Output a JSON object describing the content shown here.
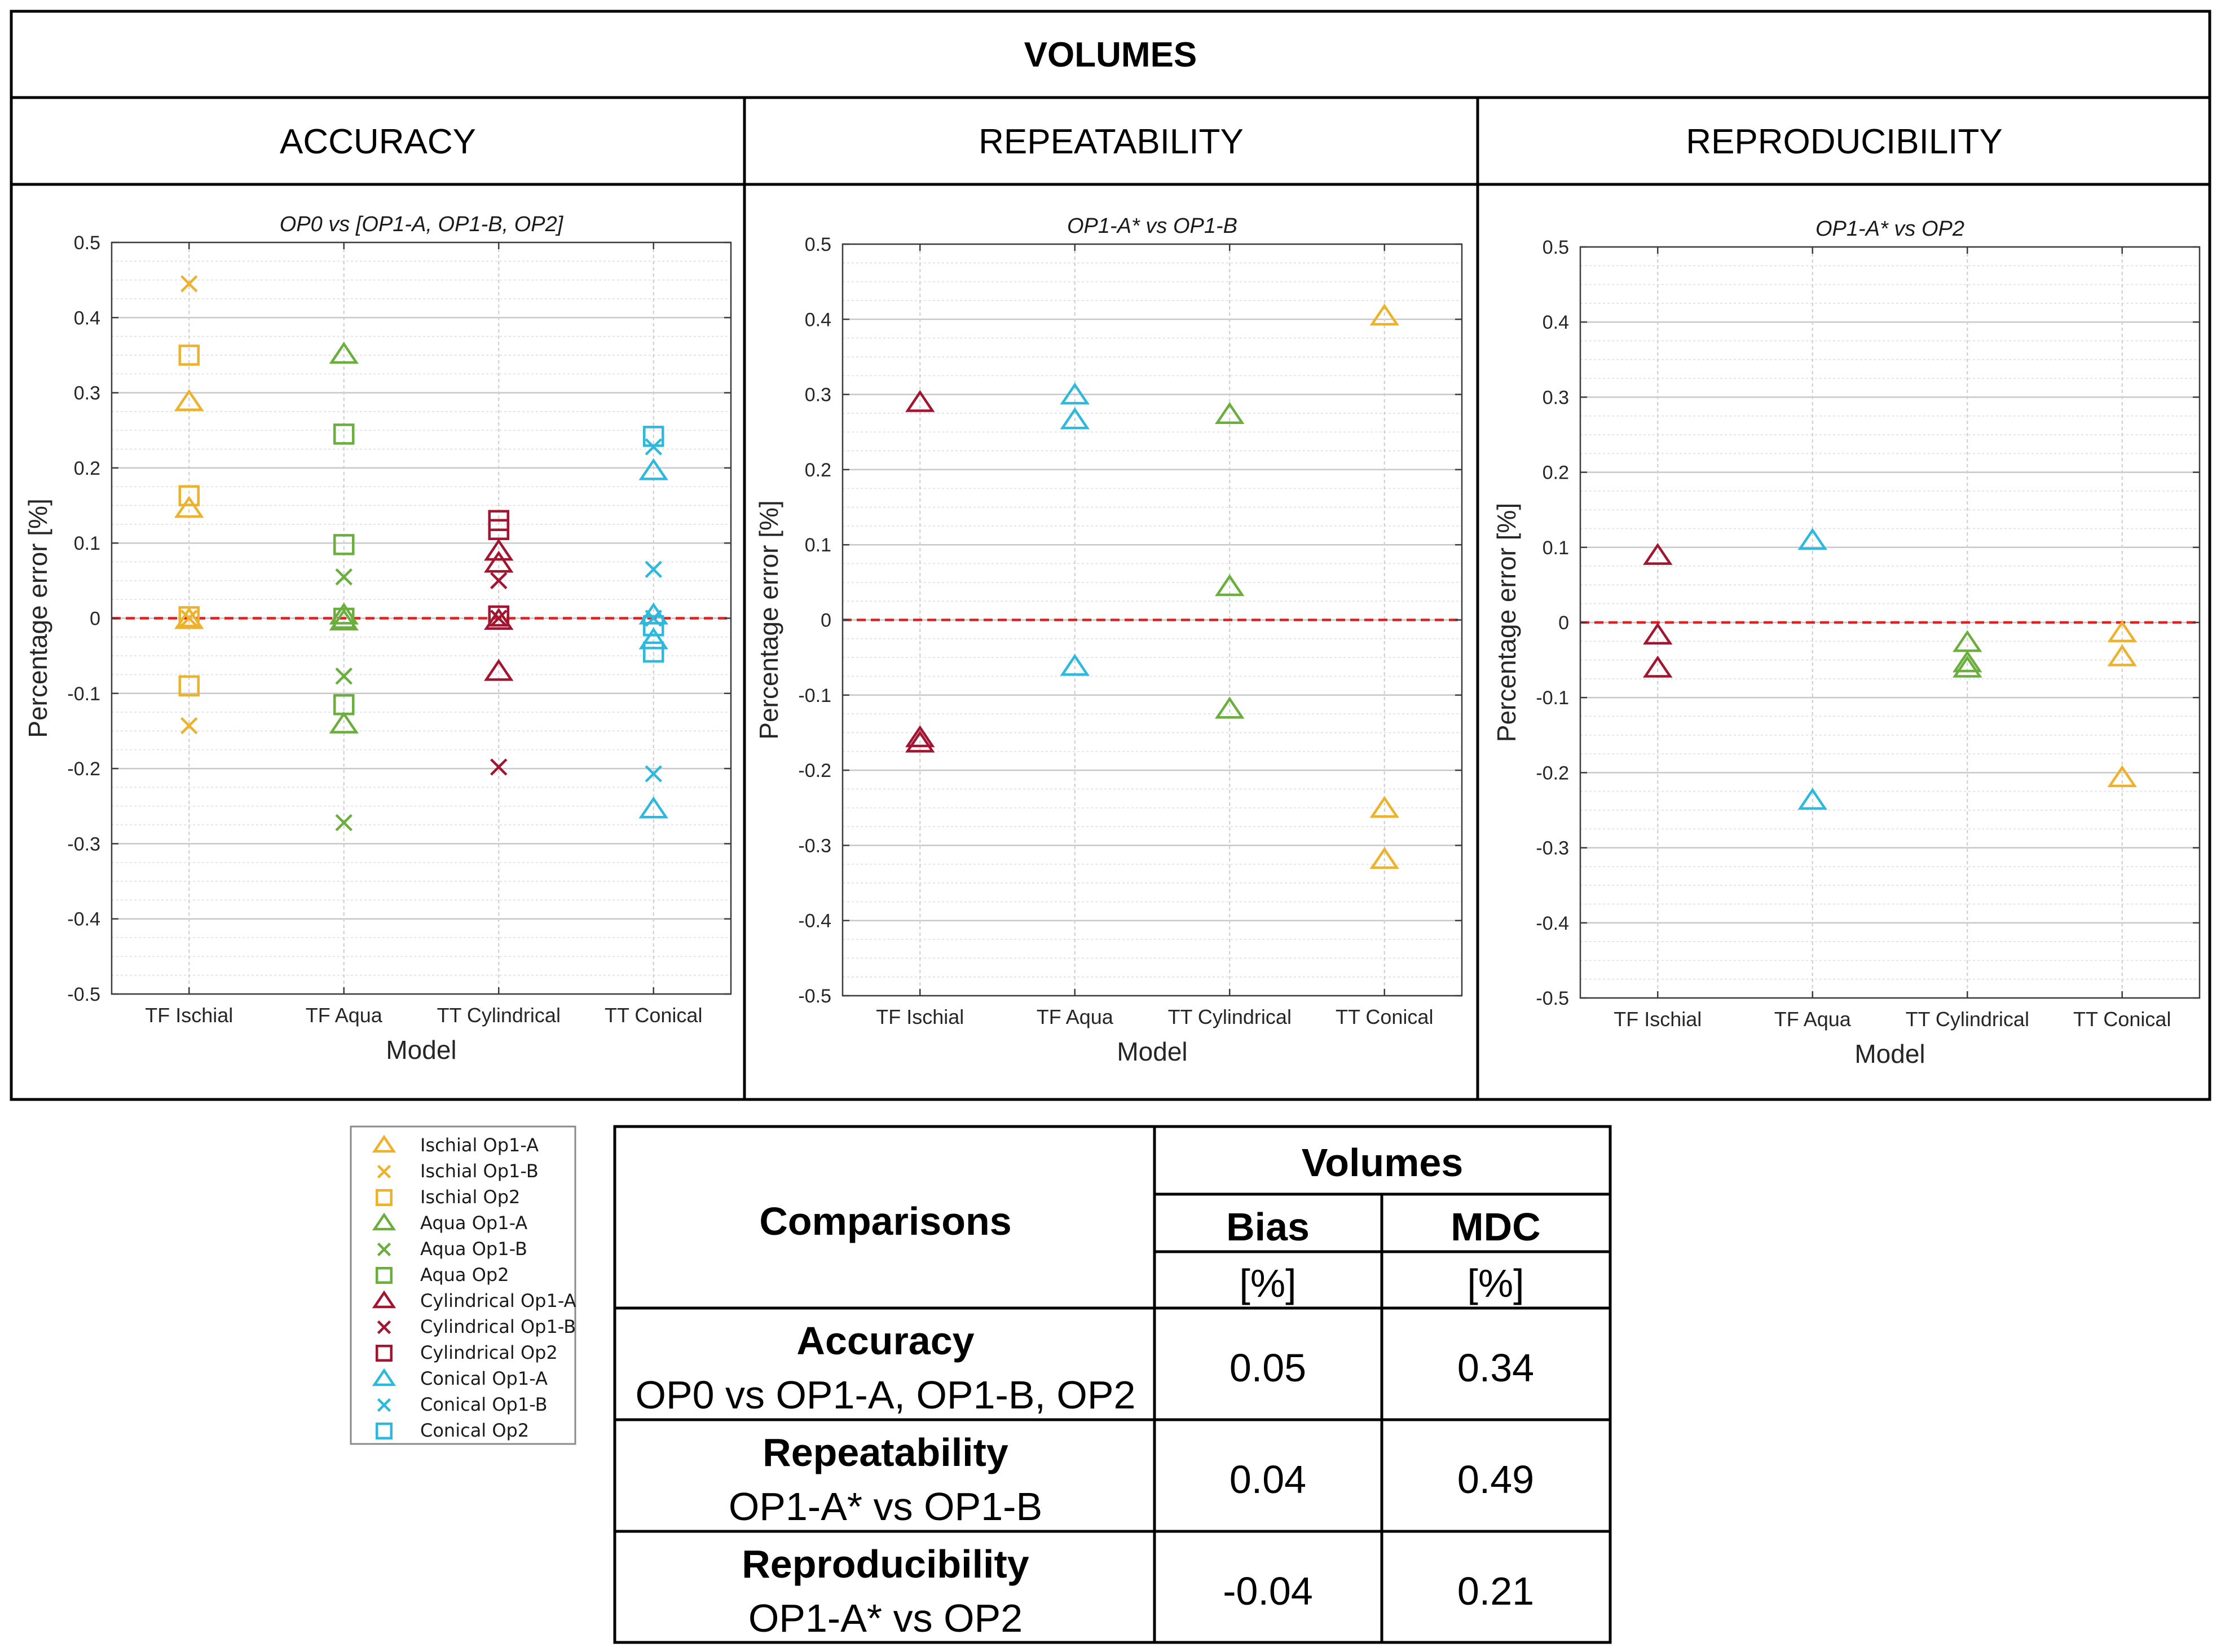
{
  "header": {
    "title": "VOLUMES"
  },
  "panels": [
    {
      "heading": "ACCURACY"
    },
    {
      "heading": "REPEATABILITY"
    },
    {
      "heading": "REPRODUCIBILITY"
    }
  ],
  "colors": {
    "ischial": "#EDB12A",
    "aqua": "#6AAF3D",
    "cylindrical": "#A2142F",
    "conical": "#2DB9DE",
    "zero_line": "#E02020",
    "border": "#000000"
  },
  "chart_data": [
    {
      "type": "scatter",
      "title": "OP0 vs [OP1-A, OP1-B, OP2]",
      "xlabel": "Model",
      "ylabel": "Percentage error [%]",
      "categories": [
        "TF Ischial",
        "TF Aqua",
        "TT Cylindrical",
        "TT Conical"
      ],
      "ylim": [
        -0.5,
        0.5
      ],
      "yticks": [
        -0.5,
        -0.4,
        -0.3,
        -0.2,
        -0.1,
        0,
        0.1,
        0.2,
        0.3,
        0.4,
        0.5
      ],
      "ytick_labels": [
        "-0.5",
        "-0.4",
        "-0.3",
        "-0.2",
        "-0.1",
        "0",
        "0.1",
        "0.2",
        "0.3",
        "0.4",
        "0.5"
      ],
      "grid": true,
      "reference_line": 0,
      "points": [
        {
          "cat": 0,
          "y": 0.445,
          "marker": "x",
          "color": "ischial"
        },
        {
          "cat": 0,
          "y": 0.35,
          "marker": "square",
          "color": "ischial"
        },
        {
          "cat": 0,
          "y": 0.287,
          "marker": "triangle",
          "color": "ischial"
        },
        {
          "cat": 0,
          "y": 0.163,
          "marker": "square",
          "color": "ischial"
        },
        {
          "cat": 0,
          "y": 0.145,
          "marker": "triangle",
          "color": "ischial"
        },
        {
          "cat": 0,
          "y": 0.002,
          "marker": "square",
          "color": "ischial"
        },
        {
          "cat": 0,
          "y": -0.003,
          "marker": "triangle",
          "color": "ischial"
        },
        {
          "cat": 0,
          "y": 0.0,
          "marker": "x",
          "color": "ischial"
        },
        {
          "cat": 0,
          "y": -0.09,
          "marker": "square",
          "color": "ischial"
        },
        {
          "cat": 0,
          "y": -0.143,
          "marker": "x",
          "color": "ischial"
        },
        {
          "cat": 1,
          "y": 0.35,
          "marker": "triangle",
          "color": "aqua"
        },
        {
          "cat": 1,
          "y": 0.245,
          "marker": "square",
          "color": "aqua"
        },
        {
          "cat": 1,
          "y": 0.098,
          "marker": "square",
          "color": "aqua"
        },
        {
          "cat": 1,
          "y": 0.055,
          "marker": "x",
          "color": "aqua"
        },
        {
          "cat": 1,
          "y": 0.003,
          "marker": "triangle",
          "color": "aqua"
        },
        {
          "cat": 1,
          "y": 0.0,
          "marker": "square",
          "color": "aqua"
        },
        {
          "cat": 1,
          "y": -0.005,
          "marker": "triangle",
          "color": "aqua"
        },
        {
          "cat": 1,
          "y": -0.077,
          "marker": "x",
          "color": "aqua"
        },
        {
          "cat": 1,
          "y": -0.115,
          "marker": "square",
          "color": "aqua"
        },
        {
          "cat": 1,
          "y": -0.142,
          "marker": "triangle",
          "color": "aqua"
        },
        {
          "cat": 1,
          "y": -0.272,
          "marker": "x",
          "color": "aqua"
        },
        {
          "cat": 2,
          "y": 0.13,
          "marker": "square",
          "color": "cylindrical"
        },
        {
          "cat": 2,
          "y": 0.118,
          "marker": "square",
          "color": "cylindrical"
        },
        {
          "cat": 2,
          "y": 0.088,
          "marker": "triangle",
          "color": "cylindrical"
        },
        {
          "cat": 2,
          "y": 0.072,
          "marker": "triangle",
          "color": "cylindrical"
        },
        {
          "cat": 2,
          "y": 0.05,
          "marker": "x",
          "color": "cylindrical"
        },
        {
          "cat": 2,
          "y": 0.003,
          "marker": "square",
          "color": "cylindrical"
        },
        {
          "cat": 2,
          "y": 0.0,
          "marker": "x",
          "color": "cylindrical"
        },
        {
          "cat": 2,
          "y": -0.004,
          "marker": "triangle",
          "color": "cylindrical"
        },
        {
          "cat": 2,
          "y": -0.072,
          "marker": "triangle",
          "color": "cylindrical"
        },
        {
          "cat": 2,
          "y": -0.198,
          "marker": "x",
          "color": "cylindrical"
        },
        {
          "cat": 3,
          "y": 0.242,
          "marker": "square",
          "color": "conical"
        },
        {
          "cat": 3,
          "y": 0.228,
          "marker": "x",
          "color": "conical"
        },
        {
          "cat": 3,
          "y": 0.195,
          "marker": "triangle",
          "color": "conical"
        },
        {
          "cat": 3,
          "y": 0.065,
          "marker": "x",
          "color": "conical"
        },
        {
          "cat": 3,
          "y": 0.003,
          "marker": "triangle",
          "color": "conical"
        },
        {
          "cat": 3,
          "y": 0.0,
          "marker": "x",
          "color": "conical"
        },
        {
          "cat": 3,
          "y": -0.01,
          "marker": "square",
          "color": "conical"
        },
        {
          "cat": 3,
          "y": -0.03,
          "marker": "triangle",
          "color": "conical"
        },
        {
          "cat": 3,
          "y": -0.045,
          "marker": "square",
          "color": "conical"
        },
        {
          "cat": 3,
          "y": -0.207,
          "marker": "x",
          "color": "conical"
        },
        {
          "cat": 3,
          "y": -0.255,
          "marker": "triangle",
          "color": "conical"
        }
      ]
    },
    {
      "type": "scatter",
      "title": "OP1-A* vs OP1-B",
      "xlabel": "Model",
      "ylabel": "Percentage error [%]",
      "categories": [
        "TF Ischial",
        "TF Aqua",
        "TT Cylindrical",
        "TT Conical"
      ],
      "ylim": [
        -0.5,
        0.5
      ],
      "yticks": [
        -0.5,
        -0.4,
        -0.3,
        -0.2,
        -0.1,
        0,
        0.1,
        0.2,
        0.3,
        0.4,
        0.5
      ],
      "ytick_labels": [
        "-0.5",
        "-0.4",
        "-0.3",
        "-0.2",
        "-0.1",
        "0",
        "0.1",
        "0.2",
        "0.3",
        "0.4",
        "0.5"
      ],
      "grid": true,
      "reference_line": 0,
      "points": [
        {
          "cat": 0,
          "y": 0.288,
          "marker": "triangle",
          "color": "cylindrical"
        },
        {
          "cat": 0,
          "y": -0.158,
          "marker": "triangle",
          "color": "cylindrical"
        },
        {
          "cat": 0,
          "y": -0.165,
          "marker": "triangle",
          "color": "cylindrical"
        },
        {
          "cat": 1,
          "y": 0.298,
          "marker": "triangle",
          "color": "conical"
        },
        {
          "cat": 1,
          "y": 0.265,
          "marker": "triangle",
          "color": "conical"
        },
        {
          "cat": 1,
          "y": -0.063,
          "marker": "triangle",
          "color": "conical"
        },
        {
          "cat": 2,
          "y": 0.272,
          "marker": "triangle",
          "color": "aqua"
        },
        {
          "cat": 2,
          "y": 0.043,
          "marker": "triangle",
          "color": "aqua"
        },
        {
          "cat": 2,
          "y": -0.12,
          "marker": "triangle",
          "color": "aqua"
        },
        {
          "cat": 3,
          "y": 0.403,
          "marker": "triangle",
          "color": "ischial"
        },
        {
          "cat": 3,
          "y": -0.252,
          "marker": "triangle",
          "color": "ischial"
        },
        {
          "cat": 3,
          "y": -0.32,
          "marker": "triangle",
          "color": "ischial"
        }
      ]
    },
    {
      "type": "scatter",
      "title": "OP1-A* vs OP2",
      "xlabel": "Model",
      "ylabel": "Percentage error [%]",
      "categories": [
        "TF Ischial",
        "TF Aqua",
        "TT Cylindrical",
        "TT Conical"
      ],
      "ylim": [
        -0.5,
        0.5
      ],
      "yticks": [
        -0.5,
        -0.4,
        -0.3,
        -0.2,
        -0.1,
        0,
        0.1,
        0.2,
        0.3,
        0.4,
        0.5
      ],
      "ytick_labels": [
        "-0.5",
        "-0.4",
        "-0.3",
        "-0.2",
        "-0.1",
        "0",
        "0.1",
        "0.2",
        "0.3",
        "0.4",
        "0.5"
      ],
      "grid": true,
      "reference_line": 0,
      "points": [
        {
          "cat": 0,
          "y": 0.088,
          "marker": "triangle",
          "color": "cylindrical"
        },
        {
          "cat": 0,
          "y": -0.018,
          "marker": "triangle",
          "color": "cylindrical"
        },
        {
          "cat": 0,
          "y": -0.062,
          "marker": "triangle",
          "color": "cylindrical"
        },
        {
          "cat": 1,
          "y": 0.108,
          "marker": "triangle",
          "color": "conical"
        },
        {
          "cat": 1,
          "y": -0.238,
          "marker": "triangle",
          "color": "conical"
        },
        {
          "cat": 2,
          "y": -0.028,
          "marker": "triangle",
          "color": "aqua"
        },
        {
          "cat": 2,
          "y": -0.055,
          "marker": "triangle",
          "color": "aqua"
        },
        {
          "cat": 2,
          "y": -0.062,
          "marker": "triangle",
          "color": "aqua"
        },
        {
          "cat": 3,
          "y": -0.015,
          "marker": "triangle",
          "color": "ischial"
        },
        {
          "cat": 3,
          "y": -0.047,
          "marker": "triangle",
          "color": "ischial"
        },
        {
          "cat": 3,
          "y": -0.208,
          "marker": "triangle",
          "color": "ischial"
        }
      ]
    }
  ],
  "legend": [
    {
      "label": "Ischial Op1-A",
      "marker": "triangle",
      "color": "ischial"
    },
    {
      "label": "Ischial Op1-B",
      "marker": "x",
      "color": "ischial"
    },
    {
      "label": "Ischial Op2",
      "marker": "square",
      "color": "ischial"
    },
    {
      "label": "Aqua Op1-A",
      "marker": "triangle",
      "color": "aqua"
    },
    {
      "label": "Aqua Op1-B",
      "marker": "x",
      "color": "aqua"
    },
    {
      "label": "Aqua Op2",
      "marker": "square",
      "color": "aqua"
    },
    {
      "label": "Cylindrical Op1-A",
      "marker": "triangle",
      "color": "cylindrical"
    },
    {
      "label": "Cylindrical Op1-B",
      "marker": "x",
      "color": "cylindrical"
    },
    {
      "label": "Cylindrical Op2",
      "marker": "square",
      "color": "cylindrical"
    },
    {
      "label": "Conical Op1-A",
      "marker": "triangle",
      "color": "conical"
    },
    {
      "label": "Conical Op1-B",
      "marker": "x",
      "color": "conical"
    },
    {
      "label": "Conical Op2",
      "marker": "square",
      "color": "conical"
    }
  ],
  "table": {
    "comparisons_header": "Comparisons",
    "volumes_header": "Volumes",
    "bias_header": "Bias",
    "mdc_header": "MDC",
    "unit": "[%]",
    "rows": [
      {
        "name": "Accuracy",
        "desc": "OP0 vs OP1-A, OP1-B, OP2",
        "bias": "0.05",
        "mdc": "0.34"
      },
      {
        "name": "Repeatability",
        "desc": "OP1-A* vs OP1-B",
        "bias": "0.04",
        "mdc": "0.49"
      },
      {
        "name": "Reproducibility",
        "desc": "OP1-A* vs OP2",
        "bias": "-0.04",
        "mdc": "0.21"
      }
    ]
  }
}
